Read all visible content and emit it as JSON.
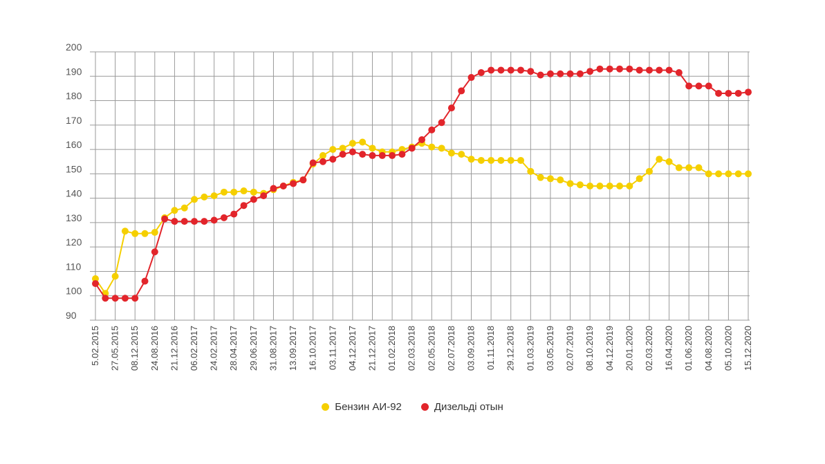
{
  "chart_data": {
    "type": "line",
    "title": "",
    "xlabel": "",
    "ylabel": "",
    "ylim": [
      90,
      200
    ],
    "yticks": [
      90,
      100,
      110,
      120,
      130,
      140,
      150,
      160,
      170,
      180,
      190,
      200
    ],
    "grid": true,
    "legend_position": "bottom-center",
    "x_tick_labels": [
      "5.02.2015",
      "27.05.2015",
      "08.12.2015",
      "24.08.2016",
      "21.12.2016",
      "06.02.2017",
      "24.02.2017",
      "28.04.2017",
      "29.06.2017",
      "31.08.2017",
      "13.09.2017",
      "16.10.2017",
      "03.11.2017",
      "04.12.2017",
      "21.12.2017",
      "01.02.2018",
      "02.03.2018",
      "02.05.2018",
      "02.07.2018",
      "03.09.2018",
      "01.11.2018",
      "29.12.2018",
      "01.03.2019",
      "03.05.2019",
      "02.07.2019",
      "08.10.2019",
      "04.12.2019",
      "20.01.2020",
      "02.03.2020",
      "16.04.2020",
      "01.06.2020",
      "04.08.2020",
      "05.10.2020",
      "15.12.2020"
    ],
    "point_count": 67,
    "series": [
      {
        "name": "Бензин АИ-92",
        "color": "#f5cf00",
        "values": [
          107,
          101,
          108,
          126.5,
          125.5,
          125.5,
          126,
          132,
          135,
          136,
          139.5,
          140.5,
          141,
          142.5,
          142.5,
          143,
          142.5,
          142,
          143.5,
          145,
          146.5,
          147.5,
          154,
          157.5,
          160,
          160.5,
          162.5,
          163,
          160.5,
          159,
          159,
          160,
          161,
          162.5,
          161,
          160.5,
          158.5,
          158,
          156,
          155.5,
          155.5,
          155.5,
          155.5,
          155.5,
          151,
          148.5,
          148,
          147.5,
          146,
          145.5,
          145,
          145,
          145,
          145,
          145,
          148,
          151,
          156,
          155,
          152.5,
          152.5,
          152.5,
          150,
          150,
          150,
          150,
          150
        ]
      },
      {
        "name": "Дизельді отын",
        "color": "#e2252b",
        "values": [
          105,
          99,
          99,
          99,
          99,
          106,
          118,
          131.5,
          130.5,
          130.5,
          130.5,
          130.5,
          131,
          132,
          133.5,
          137,
          139.5,
          141,
          144,
          145,
          146,
          147.5,
          154.5,
          155,
          156,
          158,
          159,
          158,
          157.5,
          157.5,
          157.5,
          158,
          160.5,
          164,
          168,
          171,
          177,
          184,
          189.5,
          191.5,
          192.5,
          192.5,
          192.5,
          192.5,
          192,
          190.5,
          191,
          191,
          191,
          191,
          192,
          193,
          193,
          193,
          193,
          192.5,
          192.5,
          192.5,
          192.5,
          191.5,
          186,
          186,
          186,
          183,
          183,
          183,
          183.5
        ]
      }
    ]
  }
}
